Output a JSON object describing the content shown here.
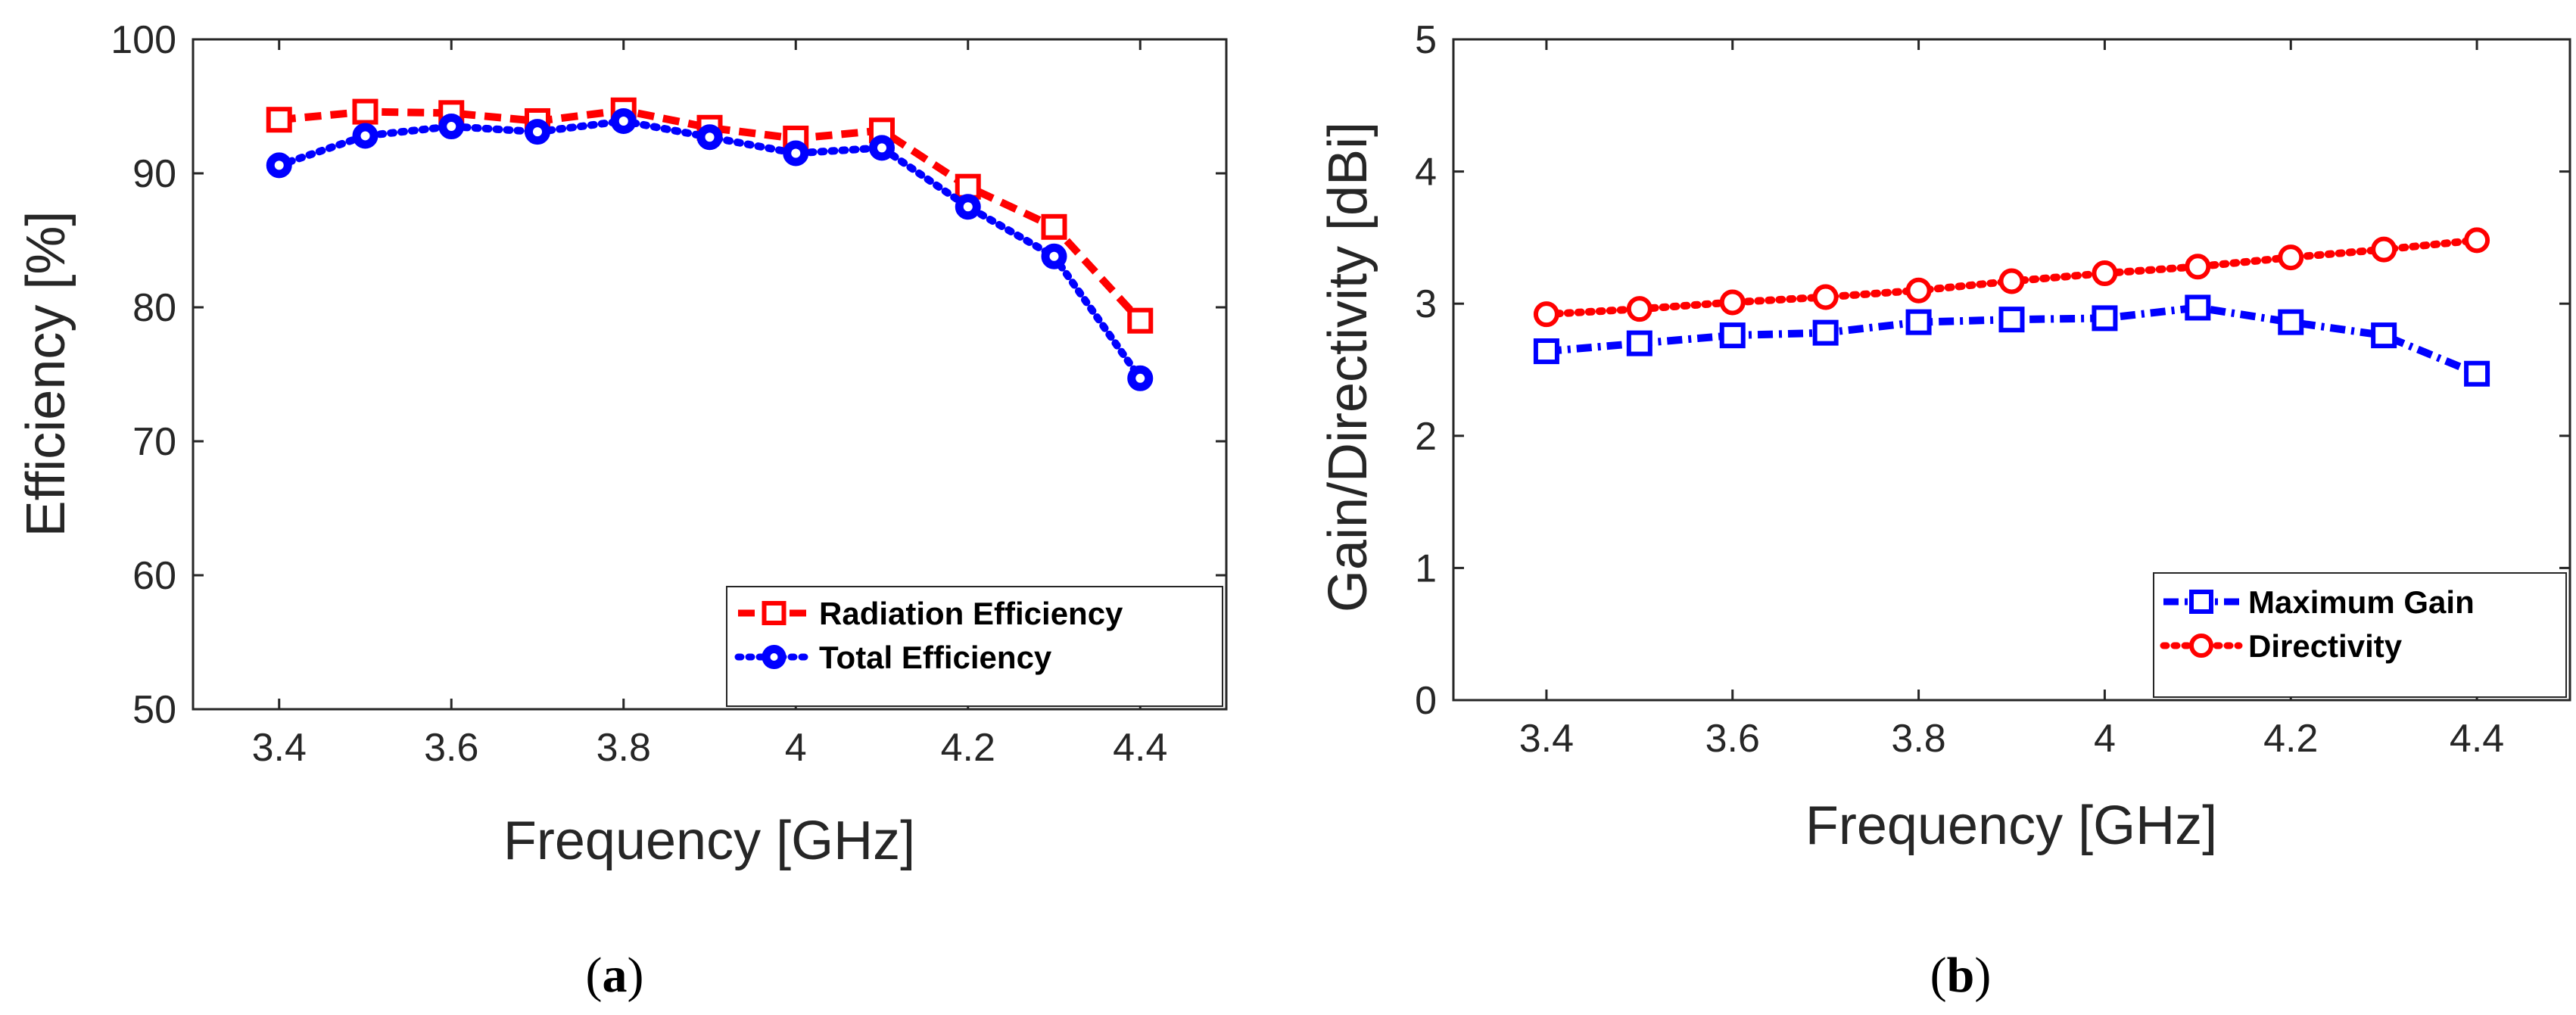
{
  "chart_data": [
    {
      "type": "line",
      "caption_letter": "a",
      "xlabel": "Frequency [GHz]",
      "ylabel": "Efficiency [%]",
      "xlim": [
        3.3,
        4.5
      ],
      "ylim": [
        50,
        100
      ],
      "xticks": [
        "3.4",
        "3.6",
        "3.8",
        "4",
        "4.2",
        "4.4"
      ],
      "yticks": [
        "50",
        "60",
        "70",
        "80",
        "90",
        "100"
      ],
      "legend_position": "bottom-right",
      "x": [
        3.4,
        3.5,
        3.6,
        3.7,
        3.8,
        3.9,
        4.0,
        4.1,
        4.2,
        4.3,
        4.4
      ],
      "series": [
        {
          "name": "Radiation Efficiency",
          "color": "#ff0000",
          "marker": "square",
          "dash": "dashed",
          "values": [
            94.0,
            94.6,
            94.5,
            93.9,
            94.7,
            93.4,
            92.6,
            93.2,
            89.0,
            86.0,
            79.0
          ]
        },
        {
          "name": "Total Efficiency",
          "color": "#0000ff",
          "marker": "circle",
          "dash": "dotted",
          "values": [
            90.6,
            92.8,
            93.5,
            93.1,
            93.9,
            92.7,
            91.5,
            91.9,
            87.5,
            83.8,
            74.7
          ]
        }
      ]
    },
    {
      "type": "line",
      "caption_letter": "b",
      "xlabel": "Frequency [GHz]",
      "ylabel": "Gain/Directivity [dBi]",
      "xlim": [
        3.3,
        4.5
      ],
      "ylim": [
        0,
        5
      ],
      "xticks": [
        "3.4",
        "3.6",
        "3.8",
        "4",
        "4.2",
        "4.4"
      ],
      "yticks": [
        "0",
        "1",
        "2",
        "3",
        "4",
        "5"
      ],
      "legend_position": "bottom-right",
      "x": [
        3.4,
        3.5,
        3.6,
        3.7,
        3.8,
        3.9,
        4.0,
        4.1,
        4.2,
        4.3,
        4.4
      ],
      "series": [
        {
          "name": "Maximum Gain",
          "color": "#0000ff",
          "marker": "square",
          "dash": "dashdot",
          "values": [
            2.64,
            2.7,
            2.76,
            2.78,
            2.86,
            2.88,
            2.89,
            2.97,
            2.86,
            2.76,
            2.47
          ]
        },
        {
          "name": "Directivity",
          "color": "#ff0000",
          "marker": "circle",
          "dash": "dotted",
          "values": [
            2.92,
            2.96,
            3.01,
            3.05,
            3.1,
            3.17,
            3.23,
            3.28,
            3.35,
            3.41,
            3.48
          ]
        }
      ]
    }
  ]
}
